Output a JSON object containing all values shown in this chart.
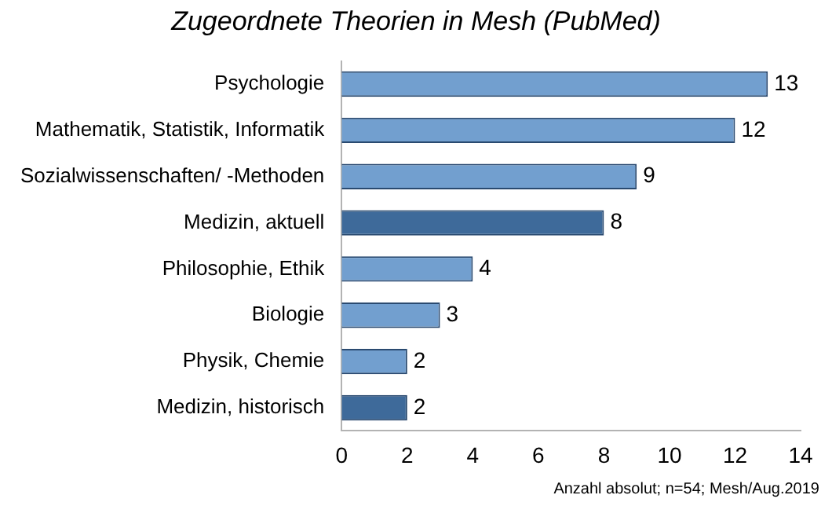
{
  "chart_data": {
    "type": "bar",
    "orientation": "horizontal",
    "title": "Zugeordnete Theorien in Mesh (PubMed)",
    "categories": [
      "Psychologie",
      "Mathematik, Statistik, Informatik",
      "Sozialwissenschaften/ -Methoden",
      "Medizin, aktuell",
      "Philosophie, Ethik",
      "Biologie",
      "Physik, Chemie",
      "Medizin, historisch"
    ],
    "values": [
      13,
      12,
      9,
      8,
      4,
      3,
      2,
      2
    ],
    "colors": [
      "#729fcf",
      "#729fcf",
      "#729fcf",
      "#3e6a9a",
      "#729fcf",
      "#729fcf",
      "#729fcf",
      "#3e6a9a"
    ],
    "xlim": [
      0,
      14
    ],
    "xticks": [
      0,
      2,
      4,
      6,
      8,
      10,
      12,
      14
    ],
    "grid": false,
    "legend": false,
    "data_labels": true,
    "annotations": [
      "Anzahl absolut; n=54; Mesh/Aug.2019"
    ]
  }
}
